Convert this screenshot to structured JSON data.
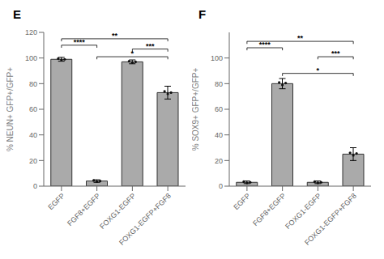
{
  "chart_data": [
    {
      "type": "bar",
      "title": "E",
      "ylabel": "% NEUN+ GFP+/GFP+",
      "categories": [
        "EGFP",
        "FGF8+EGFP",
        "FOXG1-EGFP",
        "FOXG1-EGFP+FGF8"
      ],
      "values": [
        99,
        4,
        97,
        73
      ],
      "error_bars": [
        1.5,
        1.0,
        1.5,
        5.0
      ],
      "dots": [
        [
          99.5,
          98.5,
          99.0
        ],
        [
          4.5,
          3.5,
          4.0
        ],
        [
          97.5,
          96.5,
          97.0
        ],
        [
          74.0,
          72.0,
          73.0
        ]
      ],
      "color": "#aaaaaa",
      "ylim": [
        0,
        120
      ],
      "yticks": [
        0,
        20,
        40,
        60,
        80,
        100,
        120
      ],
      "brackets": [
        {
          "from": "EGFP",
          "to": "FGF8+EGFP",
          "y": 110,
          "label": "****"
        },
        {
          "from": "EGFP",
          "to": "FOXG1-EGFP+FGF8",
          "y": 115,
          "label": "**"
        },
        {
          "from": "FOXG1-EGFP",
          "to": "FOXG1-EGFP+FGF8",
          "y": 107,
          "label": "***"
        },
        {
          "from": "FGF8+EGFP",
          "to": "FOXG1-EGFP+FGF8",
          "y": 101,
          "label": "*"
        }
      ]
    },
    {
      "type": "bar",
      "title": "F",
      "ylabel": "% SOX9+ GFP+/GFP+",
      "categories": [
        "EGFP",
        "FGF8+EGFP",
        "FOXG1-EGFP",
        "FOXG1-EGFP+FGF8"
      ],
      "values": [
        3,
        80,
        3,
        25
      ],
      "error_bars": [
        1.0,
        4.0,
        1.0,
        5.0
      ],
      "dots": [
        [
          3.5,
          2.5,
          3.0
        ],
        [
          81.0,
          79.0,
          80.5
        ],
        [
          3.5,
          2.5,
          3.0
        ],
        [
          26.0,
          24.0,
          25.5
        ]
      ],
      "color": "#aaaaaa",
      "ylim": [
        0,
        120
      ],
      "yticks": [
        0,
        20,
        40,
        60,
        80,
        100
      ],
      "brackets": [
        {
          "from": "EGFP",
          "to": "FGF8+EGFP",
          "y": 108,
          "label": "****"
        },
        {
          "from": "EGFP",
          "to": "FOXG1-EGFP+FGF8",
          "y": 113,
          "label": "**"
        },
        {
          "from": "FOXG1-EGFP",
          "to": "FOXG1-EGFP+FGF8",
          "y": 101,
          "label": "***"
        },
        {
          "from": "FGF8+EGFP",
          "to": "FOXG1-EGFP+FGF8",
          "y": 88,
          "label": "*"
        }
      ]
    }
  ]
}
